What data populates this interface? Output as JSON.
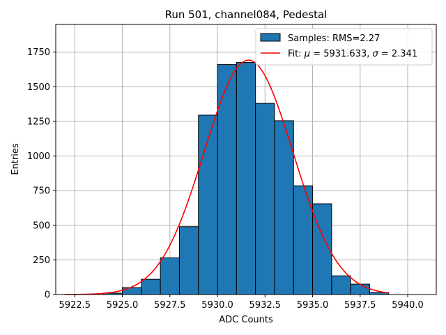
{
  "chart_data": {
    "type": "bar",
    "title": "Run 501, channel084, Pedestal",
    "xlabel": "ADC Counts",
    "ylabel": "Entries",
    "xlim": [
      5921.5,
      5941.5
    ],
    "ylim": [
      0,
      1950
    ],
    "xticks": [
      5922.5,
      5925.0,
      5927.5,
      5930.0,
      5932.5,
      5935.0,
      5937.5,
      5940.0
    ],
    "xtick_labels": [
      "5922.5",
      "5925.0",
      "5927.5",
      "5930.0",
      "5932.5",
      "5935.0",
      "5937.5",
      "5940.0"
    ],
    "yticks": [
      0,
      250,
      500,
      750,
      1000,
      1250,
      1500,
      1750
    ],
    "ytick_labels": [
      "0",
      "250",
      "500",
      "750",
      "1000",
      "1250",
      "1500",
      "1750"
    ],
    "grid": true,
    "bar_color": "#1f77b4",
    "fit_color": "#ff0000",
    "bin_edges": [
      5924,
      5925,
      5926,
      5927,
      5928,
      5929,
      5930,
      5931,
      5932,
      5933,
      5934,
      5935,
      5936,
      5937,
      5938,
      5939
    ],
    "counts": [
      10,
      50,
      110,
      265,
      490,
      1295,
      1660,
      1675,
      1380,
      1255,
      785,
      655,
      135,
      75,
      15
    ],
    "fit": {
      "mu": 5931.633,
      "sigma": 2.341,
      "peak": 1692,
      "x_range": [
        5922.0,
        5939.0
      ]
    },
    "legend": {
      "position": "top-right",
      "samples_label": "Samples: RMS=2.27",
      "fit_label_prefix": "Fit: ",
      "fit_mu_symbol": "μ",
      "fit_mu_value": " = 5931.633, ",
      "fit_sigma_symbol": "σ",
      "fit_sigma_value": " = 2.341"
    }
  }
}
